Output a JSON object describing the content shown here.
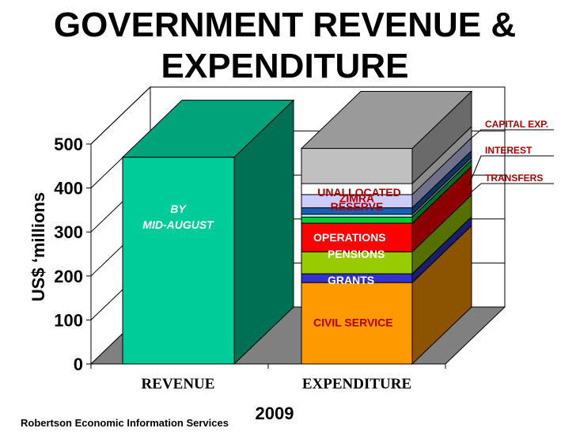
{
  "title": "GOVERNMENT REVENUE & EXPENDITURE",
  "footer": "Robertson Economic Information Services",
  "chart_data": {
    "type": "bar",
    "stacked": true,
    "style": "3d",
    "xlabel": "2009",
    "ylabel": "US$ ‘millions",
    "ylim": [
      0,
      500
    ],
    "yticks": [
      0,
      100,
      200,
      300,
      400,
      500
    ],
    "categories": [
      "REVENUE",
      "EXPENDITURE"
    ],
    "revenue": {
      "value": 470,
      "color": "#00cc99",
      "annotation": [
        "BY",
        "MID-AUGUST"
      ]
    },
    "expenditure": [
      {
        "name": "CIVIL SERVICE",
        "value": 185,
        "color": "#ff9900",
        "label_color": "#b00000"
      },
      {
        "name": "GRANTS",
        "value": 20,
        "color": "#3333cc",
        "label_color": "#ffffff"
      },
      {
        "name": "PENSIONS",
        "value": 50,
        "color": "#99cc00",
        "label_color": "#ffffff"
      },
      {
        "name": "OPERATIONS",
        "value": 65,
        "color": "#ff0000",
        "label_color": "#ffffff"
      },
      {
        "name": "TRANSFERS",
        "value": 14,
        "color": "#00cc33",
        "label_color": null
      },
      {
        "name": "",
        "value": 6,
        "color": "#ccffff",
        "label_color": null
      },
      {
        "name": "INTEREST",
        "value": 15,
        "color": "#1a5fb4",
        "label_color": null
      },
      {
        "name": "ZIMRA",
        "value": 30,
        "color": "#ccccff",
        "label_color": "#b00000"
      },
      {
        "name": "UNALLOCATED RESERVE",
        "value": 25,
        "color": "#ffffff",
        "label_color": "#b00000"
      },
      {
        "name": "CAPITAL EXP.",
        "value": 80,
        "color": "#c0c0c0",
        "label_color": null
      }
    ],
    "callouts": [
      "CAPITAL EXP.",
      "INTEREST",
      "TRANSFERS"
    ]
  }
}
